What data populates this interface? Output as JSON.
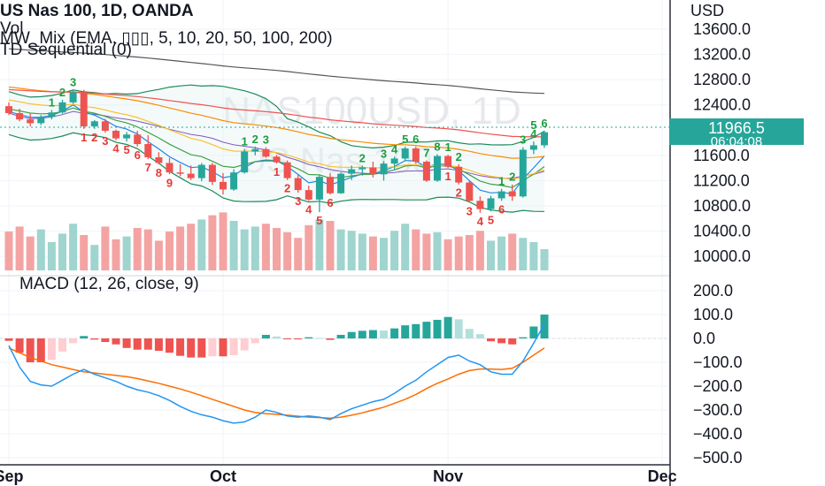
{
  "header": {
    "symbol": "US Nas 100, 1D, OANDA",
    "vol": "Vol",
    "mix": "MW_Mix (EMA, ▯▯▯, 5, 10, 20, 50, 100, 200)",
    "td": "TD Sequential (0)"
  },
  "watermark": {
    "line1": "NAS100USD, 1D",
    "line2": "US Nas 100"
  },
  "price_axis": {
    "currency": "USD",
    "ticks": [
      "13600.0",
      "13200.0",
      "12800.0",
      "12400.0",
      "11600.0",
      "11200.0",
      "10800.0",
      "10400.0",
      "10000.0"
    ]
  },
  "badge": {
    "price": "11966.5",
    "countdown": "06:04:08"
  },
  "macd": {
    "title": "MACD (12, 26, close, 9)",
    "ticks": [
      "200.0",
      "100.0",
      "0.0",
      "−100.0",
      "−200.0",
      "−300.0",
      "−400.0",
      "−500.0"
    ]
  },
  "time_axis": {
    "labels": [
      "Sep",
      "Oct",
      "Nov",
      "Dec"
    ]
  },
  "colors": {
    "up": "#26a69a",
    "down": "#ef5350",
    "vol_up": "#9fd4cf",
    "vol_down": "#f4a3a3",
    "macd_line": "#2196f3",
    "signal": "#ff6d00",
    "hist_up": "#26a69a",
    "hist_up_light": "#b2dfdb",
    "hist_down": "#ef5350",
    "hist_down_light": "#ffcdd2",
    "ema200": "#555555",
    "ema100": "#ef5350",
    "bb": "#1b8a5a",
    "td_green": "#1b9e3e",
    "td_red": "#e53935",
    "badge": "#26a69a"
  },
  "chart_data": [
    {
      "type": "candlestick",
      "title": "US Nas 100, 1D, OANDA",
      "x": [
        "Sep 1",
        "Sep 2",
        "Sep 6",
        "Sep 7",
        "Sep 8",
        "Sep 9",
        "Sep 12",
        "Sep 13",
        "Sep 14",
        "Sep 15",
        "Sep 16",
        "Sep 19",
        "Sep 20",
        "Sep 21",
        "Sep 22",
        "Sep 23",
        "Sep 26",
        "Sep 27",
        "Sep 28",
        "Sep 29",
        "Sep 30",
        "Oct 3",
        "Oct 4",
        "Oct 5",
        "Oct 6",
        "Oct 7",
        "Oct 10",
        "Oct 11",
        "Oct 12",
        "Oct 13",
        "Oct 14",
        "Oct 17",
        "Oct 18",
        "Oct 19",
        "Oct 20",
        "Oct 21",
        "Oct 24",
        "Oct 25",
        "Oct 26",
        "Oct 27",
        "Oct 28",
        "Oct 31",
        "Nov 1",
        "Nov 2",
        "Nov 3",
        "Nov 4",
        "Nov 7",
        "Nov 8",
        "Nov 9",
        "Nov 10",
        "Nov 11"
      ],
      "ohlc": [
        [
          12380,
          12440,
          12240,
          12270
        ],
        [
          12270,
          12340,
          12140,
          12170
        ],
        [
          12170,
          12260,
          12060,
          12110
        ],
        [
          12110,
          12240,
          12080,
          12210
        ],
        [
          12210,
          12320,
          12170,
          12280
        ],
        [
          12280,
          12480,
          12260,
          12440
        ],
        [
          12440,
          12640,
          12420,
          12600
        ],
        [
          12600,
          12640,
          12020,
          12060
        ],
        [
          12060,
          12160,
          12020,
          12140
        ],
        [
          12140,
          12180,
          11960,
          11990
        ],
        [
          11990,
          12010,
          11840,
          11870
        ],
        [
          11870,
          11970,
          11820,
          11930
        ],
        [
          11930,
          11990,
          11740,
          11780
        ],
        [
          11780,
          11920,
          11540,
          11570
        ],
        [
          11570,
          11650,
          11460,
          11480
        ],
        [
          11480,
          11560,
          11300,
          11330
        ],
        [
          11330,
          11460,
          11270,
          11310
        ],
        [
          11310,
          11440,
          11210,
          11240
        ],
        [
          11240,
          11480,
          11190,
          11450
        ],
        [
          11450,
          11480,
          11130,
          11180
        ],
        [
          11180,
          11320,
          10980,
          11060
        ],
        [
          11060,
          11380,
          11040,
          11330
        ],
        [
          11330,
          11700,
          11310,
          11660
        ],
        [
          11660,
          11740,
          11600,
          11700
        ],
        [
          11700,
          11730,
          11560,
          11580
        ],
        [
          11580,
          11610,
          11470,
          11490
        ],
        [
          11490,
          11520,
          11210,
          11240
        ],
        [
          11240,
          11290,
          11010,
          11050
        ],
        [
          11050,
          11120,
          10880,
          10900
        ],
        [
          10900,
          11300,
          10700,
          11260
        ],
        [
          11260,
          11320,
          10980,
          11000
        ],
        [
          11000,
          11330,
          10990,
          11310
        ],
        [
          11310,
          11440,
          11210,
          11380
        ],
        [
          11380,
          11440,
          11280,
          11410
        ],
        [
          11410,
          11500,
          11250,
          11300
        ],
        [
          11300,
          11510,
          11200,
          11470
        ],
        [
          11470,
          11580,
          11380,
          11550
        ],
        [
          11550,
          11740,
          11520,
          11710
        ],
        [
          11710,
          11740,
          11470,
          11500
        ],
        [
          11500,
          11520,
          11180,
          11200
        ],
        [
          11200,
          11620,
          11180,
          11590
        ],
        [
          11590,
          11610,
          11400,
          11420
        ],
        [
          11420,
          11460,
          11140,
          11170
        ],
        [
          11170,
          11190,
          10850,
          10880
        ],
        [
          10880,
          10950,
          10690,
          10750
        ],
        [
          10750,
          10960,
          10710,
          10920
        ],
        [
          10920,
          11070,
          10880,
          11030
        ],
        [
          11030,
          11140,
          10880,
          10950
        ],
        [
          10950,
          11730,
          10930,
          11690
        ],
        [
          11690,
          11820,
          11620,
          11760
        ],
        [
          11760,
          11990,
          11720,
          11966.5
        ]
      ],
      "volume_relative": [
        0.55,
        0.62,
        0.48,
        0.58,
        0.4,
        0.52,
        0.66,
        0.5,
        0.36,
        0.62,
        0.44,
        0.48,
        0.6,
        0.58,
        0.42,
        0.55,
        0.62,
        0.66,
        0.72,
        0.78,
        0.82,
        0.7,
        0.58,
        0.62,
        0.66,
        0.6,
        0.54,
        0.46,
        0.64,
        0.72,
        0.7,
        0.58,
        0.56,
        0.52,
        0.48,
        0.46,
        0.56,
        0.66,
        0.58,
        0.52,
        0.54,
        0.44,
        0.48,
        0.5,
        0.56,
        0.42,
        0.48,
        0.52,
        0.46,
        0.4,
        0.3
      ],
      "td_sequential": {
        "green_counts": [
          {
            "x": "Sep 8",
            "label": "1"
          },
          {
            "x": "Sep 9",
            "label": "2"
          },
          {
            "x": "Sep 12",
            "label": "3"
          },
          {
            "x": "Oct 4",
            "label": "1"
          },
          {
            "x": "Oct 5",
            "label": "2"
          },
          {
            "x": "Oct 6",
            "label": "3"
          },
          {
            "x": "Oct 19",
            "label": "2"
          },
          {
            "x": "Oct 21",
            "label": "3"
          },
          {
            "x": "Oct 24",
            "label": "4"
          },
          {
            "x": "Oct 25",
            "label": "5"
          },
          {
            "x": "Oct 26",
            "label": "6"
          },
          {
            "x": "Oct 27",
            "label": "7"
          },
          {
            "x": "Oct 28",
            "label": "8"
          },
          {
            "x": "Oct 31",
            "label": "1"
          },
          {
            "x": "Nov 1",
            "label": "2"
          },
          {
            "x": "Nov 7",
            "label": "1"
          },
          {
            "x": "Nov 8",
            "label": "2"
          },
          {
            "x": "Nov 9",
            "label": "3"
          },
          {
            "x": "Nov 10",
            "label": "4"
          },
          {
            "x": "Nov 10",
            "label": "5"
          },
          {
            "x": "Nov 11",
            "label": "6"
          }
        ],
        "red_counts": [
          {
            "x": "Sep 13",
            "label": "1"
          },
          {
            "x": "Sep 14",
            "label": "2"
          },
          {
            "x": "Sep 15",
            "label": "3"
          },
          {
            "x": "Sep 16",
            "label": "4"
          },
          {
            "x": "Sep 19",
            "label": "5"
          },
          {
            "x": "Sep 20",
            "label": "6"
          },
          {
            "x": "Sep 21",
            "label": "7"
          },
          {
            "x": "Sep 22",
            "label": "8"
          },
          {
            "x": "Sep 23",
            "label": "9"
          },
          {
            "x": "Oct 7",
            "label": "1"
          },
          {
            "x": "Oct 10",
            "label": "2"
          },
          {
            "x": "Oct 11",
            "label": "3"
          },
          {
            "x": "Oct 12",
            "label": "4"
          },
          {
            "x": "Oct 13",
            "label": "5"
          },
          {
            "x": "Oct 14",
            "label": "6"
          },
          {
            "x": "Oct 31",
            "label": "1"
          },
          {
            "x": "Nov 1",
            "label": "2"
          },
          {
            "x": "Nov 2",
            "label": "3"
          },
          {
            "x": "Nov 3",
            "label": "4"
          },
          {
            "x": "Nov 4",
            "label": "5"
          },
          {
            "x": "Nov 7",
            "label": "6"
          }
        ]
      },
      "ylim": [
        9900,
        13800
      ],
      "xlabel": "",
      "ylabel": "USD"
    },
    {
      "type": "line",
      "title": "MACD (12, 26, close, 9)",
      "x": [
        "Sep 1",
        "Sep 2",
        "Sep 6",
        "Sep 7",
        "Sep 8",
        "Sep 9",
        "Sep 12",
        "Sep 13",
        "Sep 14",
        "Sep 15",
        "Sep 16",
        "Sep 19",
        "Sep 20",
        "Sep 21",
        "Sep 22",
        "Sep 23",
        "Sep 26",
        "Sep 27",
        "Sep 28",
        "Sep 29",
        "Sep 30",
        "Oct 3",
        "Oct 4",
        "Oct 5",
        "Oct 6",
        "Oct 7",
        "Oct 10",
        "Oct 11",
        "Oct 12",
        "Oct 13",
        "Oct 14",
        "Oct 17",
        "Oct 18",
        "Oct 19",
        "Oct 20",
        "Oct 21",
        "Oct 24",
        "Oct 25",
        "Oct 26",
        "Oct 27",
        "Oct 28",
        "Oct 31",
        "Nov 1",
        "Nov 2",
        "Nov 3",
        "Nov 4",
        "Nov 7",
        "Nov 8",
        "Nov 9",
        "Nov 10",
        "Nov 11"
      ],
      "series": [
        {
          "name": "MACD",
          "values": [
            -30,
            -120,
            -180,
            -195,
            -200,
            -175,
            -150,
            -130,
            -150,
            -165,
            -180,
            -200,
            -215,
            -225,
            -240,
            -260,
            -285,
            -305,
            -320,
            -330,
            -345,
            -355,
            -350,
            -330,
            -300,
            -310,
            -325,
            -330,
            -325,
            -330,
            -340,
            -315,
            -295,
            -280,
            -265,
            -255,
            -230,
            -200,
            -175,
            -140,
            -110,
            -80,
            -70,
            -95,
            -110,
            -140,
            -150,
            -150,
            -95,
            -20,
            60
          ]
        },
        {
          "name": "Signal",
          "values": [
            -40,
            -60,
            -80,
            -95,
            -110,
            -120,
            -130,
            -140,
            -145,
            -150,
            -155,
            -160,
            -168,
            -178,
            -188,
            -200,
            -212,
            -225,
            -240,
            -255,
            -270,
            -285,
            -300,
            -310,
            -315,
            -318,
            -322,
            -326,
            -330,
            -332,
            -334,
            -330,
            -322,
            -312,
            -300,
            -288,
            -272,
            -255,
            -235,
            -210,
            -188,
            -170,
            -150,
            -135,
            -128,
            -128,
            -130,
            -125,
            -100,
            -70,
            -40
          ]
        }
      ],
      "histogram": [
        -10,
        -60,
        -100,
        -100,
        -90,
        -55,
        -20,
        10,
        -5,
        -15,
        -25,
        -40,
        -47,
        -47,
        -52,
        -60,
        -73,
        -80,
        -80,
        -75,
        -75,
        -70,
        -50,
        -20,
        15,
        8,
        -3,
        -4,
        5,
        2,
        -6,
        15,
        27,
        32,
        35,
        33,
        42,
        55,
        60,
        70,
        78,
        90,
        80,
        40,
        18,
        -12,
        -20,
        -25,
        5,
        50,
        100
      ],
      "ylim": [
        -520,
        230
      ],
      "xlabel": "",
      "ylabel": ""
    }
  ]
}
